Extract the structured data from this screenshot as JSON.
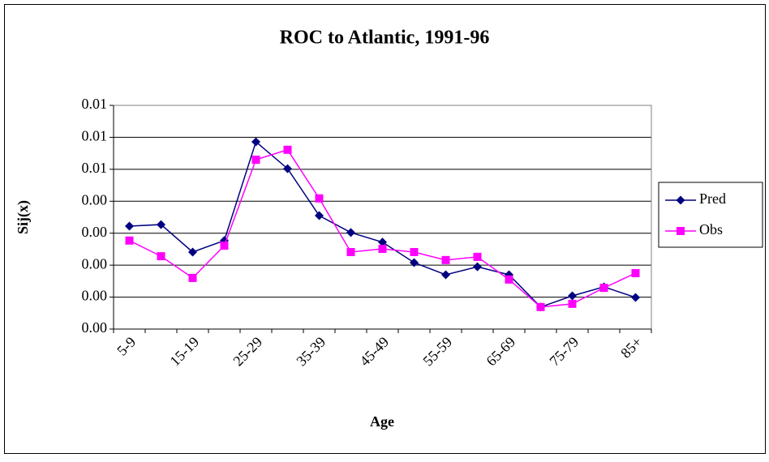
{
  "chart_data": {
    "type": "line",
    "title": "ROC to Atlantic, 1991-96",
    "x_label": "Age",
    "y_label": "Sij(x)",
    "categories": [
      "5-9",
      null,
      "15-19",
      null,
      "25-29",
      null,
      "35-39",
      null,
      "45-49",
      null,
      "55-59",
      null,
      "65-69",
      null,
      "75-79",
      null,
      "85+"
    ],
    "series": [
      {
        "name": "Pred",
        "color": "#000080",
        "marker": "diamond",
        "values": [
          0.00322,
          0.00327,
          0.00241,
          0.00277,
          0.00586,
          0.00502,
          0.00355,
          0.00302,
          0.00272,
          0.00208,
          0.0017,
          0.00195,
          0.0017,
          0.00069,
          0.00104,
          0.00132,
          0.00099
        ]
      },
      {
        "name": "Obs",
        "color": "#ff00ff",
        "marker": "square",
        "values": [
          0.00277,
          0.00228,
          0.0016,
          0.00261,
          0.0053,
          0.00561,
          0.00409,
          0.00241,
          0.00251,
          0.00241,
          0.00216,
          0.00226,
          0.00155,
          0.00069,
          0.00079,
          0.00129,
          0.00175
        ]
      }
    ],
    "ylim": [
      0,
      0.007
    ],
    "yticks": [
      {
        "value": 0,
        "label": "0.00"
      },
      {
        "value": 0.001,
        "label": "0.00"
      },
      {
        "value": 0.002,
        "label": "0.00"
      },
      {
        "value": 0.003,
        "label": "0.00"
      },
      {
        "value": 0.004,
        "label": "0.00"
      },
      {
        "value": 0.005,
        "label": "0.01"
      },
      {
        "value": 0.006,
        "label": "0.01"
      },
      {
        "value": 0.007,
        "label": "0.01"
      }
    ],
    "grid": true,
    "legend": "right"
  }
}
